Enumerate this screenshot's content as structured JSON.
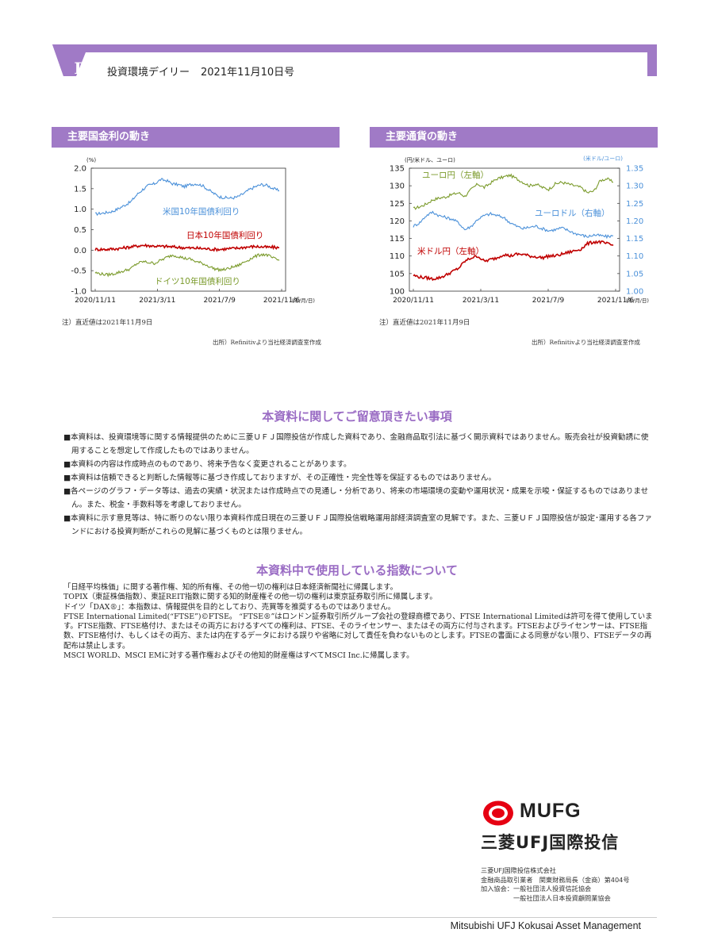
{
  "header": {
    "badge_letter": "D",
    "title": "投資環境デイリー",
    "date": "2021年11月10日号"
  },
  "colors": {
    "accent": "#a07ac6",
    "us": "#4a90d9",
    "jp": "#c00000",
    "de": "#7a9a2a"
  },
  "sections": {
    "rates_title": "主要国金利の動き",
    "fx_title": "主要通貨の動き"
  },
  "chart_data": [
    {
      "type": "line",
      "title": "主要国金利の動き",
      "unit_label": "(%)",
      "x_unit_label": "(年/月/日)",
      "x_ticks": [
        "2020/11/11",
        "2021/3/11",
        "2021/7/9",
        "2021/11/6"
      ],
      "y_ticks": [
        "2.0",
        "1.5",
        "1.0",
        "0.5",
        "0.0",
        "-0.5",
        "-1.0"
      ],
      "ylim": [
        -1.0,
        2.0
      ],
      "grid": false,
      "series": [
        {
          "name": "米国10年国債利回り",
          "color": "#4a90d9",
          "values": [
            0.88,
            0.9,
            0.92,
            0.95,
            1.02,
            1.1,
            1.18,
            1.35,
            1.48,
            1.58,
            1.62,
            1.72,
            1.7,
            1.62,
            1.6,
            1.55,
            1.6,
            1.62,
            1.58,
            1.48,
            1.38,
            1.3,
            1.28,
            1.27,
            1.3,
            1.38,
            1.48,
            1.55,
            1.6,
            1.58,
            1.5,
            1.45
          ]
        },
        {
          "name": "日本10年国債利回り",
          "color": "#c00000",
          "values": [
            0.02,
            0.02,
            0.02,
            0.03,
            0.04,
            0.06,
            0.08,
            0.1,
            0.12,
            0.11,
            0.1,
            0.09,
            0.09,
            0.08,
            0.07,
            0.06,
            0.05,
            0.05,
            0.04,
            0.03,
            0.02,
            0.02,
            0.03,
            0.04,
            0.05,
            0.07,
            0.08,
            0.09,
            0.08,
            0.07,
            0.07,
            0.06
          ]
        },
        {
          "name": "ドイツ10年国債利回り",
          "color": "#7a9a2a",
          "values": [
            -0.55,
            -0.58,
            -0.6,
            -0.58,
            -0.54,
            -0.5,
            -0.45,
            -0.33,
            -0.28,
            -0.3,
            -0.32,
            -0.25,
            -0.18,
            -0.12,
            -0.15,
            -0.2,
            -0.22,
            -0.28,
            -0.32,
            -0.38,
            -0.45,
            -0.48,
            -0.47,
            -0.42,
            -0.38,
            -0.3,
            -0.22,
            -0.15,
            -0.1,
            -0.12,
            -0.2,
            -0.25
          ]
        }
      ],
      "note": "注）直近値は2021年11月9日",
      "source": "出所）Refinitivより当社経済調査室作成"
    },
    {
      "type": "line",
      "title": "主要通貨の動き",
      "left_unit_label": "(円/米ドル、ユーロ)",
      "right_unit_label": "(米ドル/ユーロ)",
      "x_unit_label": "(年/月/日)",
      "x_ticks": [
        "2020/11/11",
        "2021/3/11",
        "2021/7/9",
        "2021/11/6"
      ],
      "y_left_ticks": [
        "135",
        "130",
        "125",
        "120",
        "115",
        "110",
        "105",
        "100"
      ],
      "y_right_ticks": [
        "1.35",
        "1.30",
        "1.25",
        "1.20",
        "1.15",
        "1.10",
        "1.05",
        "1.00"
      ],
      "ylim_left": [
        100,
        135
      ],
      "ylim_right": [
        1.0,
        1.35
      ],
      "grid": false,
      "series": [
        {
          "name": "ユーロ円（左軸）",
          "axis": "left",
          "color": "#7a9a2a",
          "values": [
            123.5,
            124.0,
            124.8,
            126.0,
            126.5,
            126.8,
            127.5,
            128.0,
            127.0,
            129.0,
            130.5,
            129.5,
            130.8,
            132.0,
            132.5,
            133.0,
            132.0,
            131.0,
            130.0,
            130.5,
            129.5,
            129.0,
            130.5,
            131.0,
            130.5,
            130.0,
            129.5,
            128.0,
            128.5,
            131.5,
            132.0,
            131.0
          ]
        },
        {
          "name": "ユーロドル（右軸）",
          "axis": "right",
          "color": "#4a90d9",
          "values": [
            1.185,
            1.195,
            1.215,
            1.225,
            1.215,
            1.21,
            1.205,
            1.195,
            1.175,
            1.185,
            1.205,
            1.215,
            1.22,
            1.215,
            1.21,
            1.195,
            1.185,
            1.178,
            1.182,
            1.185,
            1.178,
            1.172,
            1.175,
            1.18,
            1.173,
            1.165,
            1.16,
            1.155,
            1.16,
            1.158,
            1.155,
            1.158
          ]
        },
        {
          "name": "米ドル円（左軸）",
          "axis": "left",
          "color": "#c00000",
          "values": [
            104.5,
            104.0,
            103.8,
            103.5,
            103.8,
            104.5,
            105.5,
            106.5,
            108.5,
            109.5,
            110.0,
            108.5,
            109.0,
            109.5,
            110.5,
            110.0,
            110.5,
            110.5,
            110.0,
            109.8,
            109.5,
            110.0,
            110.0,
            110.5,
            111.0,
            111.5,
            112.0,
            113.5,
            114.0,
            114.0,
            113.5,
            113.0
          ]
        }
      ],
      "note": "注）直近値は2021年11月9日",
      "source": "出所）Refinitivより当社経済調査室作成"
    }
  ],
  "disclaimer": {
    "title": "本資料に関してご留意頂きたい事項",
    "items": [
      "■本資料は、投資環境等に関する情報提供のために三菱ＵＦＪ国際投信が作成した資料であり、金融商品取引法に基づく開示資料ではありません。販売会社が投資勧誘に使用することを想定して作成したものではありません。",
      "■本資料の内容は作成時点のものであり、将来予告なく変更されることがあります。",
      "■本資料は信頼できると判断した情報等に基づき作成しておりますが、その正確性・完全性等を保証するものではありません。",
      "■各ページのグラフ・データ等は、過去の実績・状況または作成時点での見通し・分析であり、将来の市場環境の変動や運用状況・成果を示唆・保証するものではありません。また、税金・手数料等を考慮しておりません。",
      "■本資料に示す意見等は、特に断りのない限り本資料作成日現在の三菱ＵＦＪ国際投信戦略運用部経済調査室の見解です。また、三菱ＵＦＪ国際投信が設定･運用する各ファンドにおける投資判断がこれらの見解に基づくものとは限りません。"
    ]
  },
  "indices": {
    "title": "本資料中で使用している指数について",
    "paragraphs": [
      "「日経平均株価」に関する著作権、知的所有権、その他一切の権利は日本経済新聞社に帰属します。",
      "TOPIX（東証株価指数）、東証REIT指数に関する知的財産権その他一切の権利は東京証券取引所に帰属します。",
      "ドイツ「DAX®」：本指数は、情報提供を目的としており、売買等を推奨するものではありません。",
      "FTSE International Limited(“FTSE”)©FTSE。 “FTSE®”はロンドン証券取引所グループ会社の登録商標であり、FTSE International Limitedは許可を得て使用しています。FTSE指数、FTSE格付け、またはその両方におけるすべての権利は、FTSE、そのライセンサー、またはその両方に付与されます。FTSEおよびライセンサーは、FTSE指数、FTSE格付け、もしくはその両方、または内在するデータにおける誤りや省略に対して責任を負わないものとします。FTSEの書面による同意がない限り、FTSEデータの再配布は禁止します。",
      "MSCI WORLD、MSCI EMに対する著作権およびその他知的財産権はすべてMSCI Inc.に帰属します。"
    ]
  },
  "company": {
    "logo_text": "MUFG",
    "name_jp": "三菱UFJ国際投信",
    "info": "三菱UFJ国際投信株式会社\n金融商品取引業者　関東財務局長（金商）第404号\n加入協会：一般社団法人投資信託協会\n　　　　　一般社団法人日本投資顧問業協会",
    "footer_en": "Mitsubishi UFJ Kokusai Asset Management"
  }
}
